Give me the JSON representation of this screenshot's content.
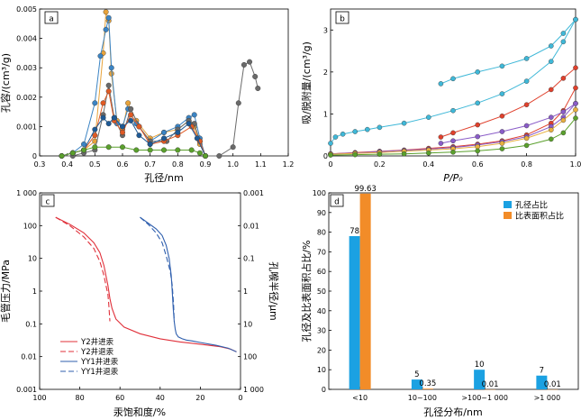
{
  "chart_data": [
    {
      "panel": "a",
      "type": "line",
      "xlabel": "孔径/nm",
      "ylabel": "孔容/(cm³/g)",
      "xlim": [
        0.3,
        1.2
      ],
      "ylim": [
        0,
        0.005
      ],
      "xticks": [
        "0.3",
        "0.4",
        "0.5",
        "0.6",
        "0.7",
        "0.8",
        "0.9",
        "1.0",
        "1.1",
        "1.2"
      ],
      "yticks": [
        "0",
        "0.001",
        "0.002",
        "0.003",
        "0.004",
        "0.005"
      ],
      "series": [
        {
          "color": "#e8a33a",
          "x": [
            0.38,
            0.42,
            0.46,
            0.5,
            0.53,
            0.54,
            0.55,
            0.56,
            0.58,
            0.6,
            0.62,
            0.65,
            0.7,
            0.75,
            0.8,
            0.84,
            0.86,
            0.88,
            0.9
          ],
          "y": [
            0.0,
            0.0001,
            0.0002,
            0.0005,
            0.0035,
            0.0049,
            0.0046,
            0.0028,
            0.0012,
            0.0009,
            0.0018,
            0.0012,
            0.0006,
            0.0008,
            0.0009,
            0.0012,
            0.001,
            0.0004,
            0.0
          ]
        },
        {
          "color": "#3b84c4",
          "x": [
            0.38,
            0.42,
            0.46,
            0.5,
            0.52,
            0.54,
            0.55,
            0.56,
            0.58,
            0.6,
            0.62,
            0.65,
            0.7,
            0.75,
            0.8,
            0.84,
            0.86,
            0.88,
            0.9
          ],
          "y": [
            0.0,
            0.0001,
            0.0004,
            0.0018,
            0.0034,
            0.0043,
            0.0047,
            0.003,
            0.0011,
            0.001,
            0.0016,
            0.0011,
            0.0005,
            0.0008,
            0.001,
            0.0013,
            0.0014,
            0.0006,
            0.0
          ]
        },
        {
          "color": "#6a6a6a",
          "x": [
            0.38,
            0.42,
            0.46,
            0.5,
            0.53,
            0.55,
            0.57,
            0.6,
            0.63,
            0.66,
            0.7,
            0.76,
            0.8,
            0.84,
            0.86,
            0.88,
            0.9,
            0.95,
            1.0,
            1.02,
            1.04,
            1.06,
            1.08,
            1.09
          ],
          "y": [
            0.0,
            0.0,
            0.0001,
            0.0002,
            0.0014,
            0.0024,
            0.0013,
            0.0007,
            0.0016,
            0.001,
            0.0005,
            0.0005,
            0.0009,
            0.0012,
            0.0011,
            0.0005,
            0.0,
            0.0,
            0.0003,
            0.0018,
            0.0031,
            0.0032,
            0.0027,
            0.0023
          ]
        },
        {
          "color": "#e05a24",
          "x": [
            0.38,
            0.42,
            0.46,
            0.5,
            0.53,
            0.55,
            0.57,
            0.6,
            0.63,
            0.66,
            0.7,
            0.75,
            0.8,
            0.85,
            0.88,
            0.9
          ],
          "y": [
            0.0,
            0.0001,
            0.0002,
            0.0007,
            0.0018,
            0.0022,
            0.0012,
            0.0008,
            0.0014,
            0.001,
            0.0004,
            0.0005,
            0.0007,
            0.001,
            0.0005,
            0.0
          ]
        },
        {
          "color": "#1e5a96",
          "x": [
            0.38,
            0.42,
            0.46,
            0.5,
            0.53,
            0.55,
            0.57,
            0.6,
            0.63,
            0.66,
            0.7,
            0.75,
            0.8,
            0.84,
            0.87,
            0.9
          ],
          "y": [
            0.0,
            0.0001,
            0.0002,
            0.0009,
            0.0013,
            0.0011,
            0.0013,
            0.001,
            0.0012,
            0.0007,
            0.0004,
            0.0006,
            0.0008,
            0.0011,
            0.0006,
            0.0
          ]
        },
        {
          "color": "#5aa02c",
          "x": [
            0.38,
            0.42,
            0.46,
            0.5,
            0.55,
            0.6,
            0.65,
            0.7,
            0.75,
            0.8,
            0.85,
            0.88,
            0.9
          ],
          "y": [
            0.0,
            0.0001,
            0.0002,
            0.0003,
            0.0003,
            0.0003,
            0.0002,
            0.0002,
            0.0002,
            0.0002,
            0.0002,
            0.0001,
            0.0
          ]
        }
      ]
    },
    {
      "panel": "b",
      "type": "line",
      "xlabel": "P/P₀",
      "ylabel": "吸/脱附量/(cm³/g)",
      "xlim": [
        0,
        1
      ],
      "ylim": [
        0,
        3.5
      ],
      "xticks": [
        "0",
        "0.2",
        "0.4",
        "0.6",
        "0.8",
        "1.0"
      ],
      "yticks": [
        "0",
        "1",
        "2",
        "3"
      ],
      "series": [
        {
          "color": "#3fb8d8",
          "x": [
            0.0,
            0.02,
            0.05,
            0.1,
            0.15,
            0.2,
            0.3,
            0.4,
            0.5,
            0.6,
            0.7,
            0.8,
            0.9,
            0.95,
            1.0
          ],
          "y": [
            0.3,
            0.45,
            0.52,
            0.58,
            0.63,
            0.68,
            0.78,
            0.92,
            1.08,
            1.26,
            1.48,
            1.78,
            2.25,
            2.72,
            3.25
          ]
        },
        {
          "color": "#3fb8d8",
          "x": [
            1.0,
            0.95,
            0.9,
            0.8,
            0.7,
            0.6,
            0.5,
            0.45
          ],
          "y": [
            3.25,
            2.92,
            2.62,
            2.32,
            2.14,
            2.0,
            1.84,
            1.72
          ]
        },
        {
          "color": "#e0402c",
          "x": [
            0.0,
            0.1,
            0.2,
            0.3,
            0.4,
            0.5,
            0.6,
            0.7,
            0.8,
            0.9,
            0.95,
            1.0
          ],
          "y": [
            0.05,
            0.08,
            0.11,
            0.14,
            0.18,
            0.22,
            0.28,
            0.36,
            0.5,
            0.78,
            1.08,
            1.62
          ]
        },
        {
          "color": "#e0402c",
          "x": [
            1.0,
            0.95,
            0.9,
            0.8,
            0.7,
            0.6,
            0.5,
            0.45
          ],
          "y": [
            2.1,
            1.85,
            1.58,
            1.22,
            0.95,
            0.74,
            0.55,
            0.45
          ]
        },
        {
          "color": "#8a5cc8",
          "x": [
            0.0,
            0.1,
            0.2,
            0.3,
            0.4,
            0.5,
            0.6,
            0.7,
            0.8,
            0.9,
            0.95,
            1.0
          ],
          "y": [
            0.05,
            0.07,
            0.1,
            0.13,
            0.16,
            0.2,
            0.26,
            0.34,
            0.46,
            0.7,
            0.92,
            1.25
          ]
        },
        {
          "color": "#8a5cc8",
          "x": [
            1.0,
            0.95,
            0.9,
            0.8,
            0.7,
            0.6,
            0.5,
            0.45
          ],
          "y": [
            1.25,
            1.05,
            0.92,
            0.72,
            0.58,
            0.46,
            0.36,
            0.3
          ]
        },
        {
          "color": "#e8b040",
          "x": [
            0.0,
            0.1,
            0.2,
            0.3,
            0.4,
            0.5,
            0.6,
            0.7,
            0.8,
            0.9,
            0.95,
            1.0
          ],
          "y": [
            0.04,
            0.06,
            0.08,
            0.11,
            0.14,
            0.17,
            0.22,
            0.3,
            0.42,
            0.62,
            0.85,
            1.1
          ]
        },
        {
          "color": "#5aa02c",
          "x": [
            0.0,
            0.1,
            0.2,
            0.3,
            0.4,
            0.5,
            0.6,
            0.7,
            0.8,
            0.9,
            0.95,
            1.0
          ],
          "y": [
            0.02,
            0.03,
            0.04,
            0.05,
            0.07,
            0.09,
            0.12,
            0.17,
            0.25,
            0.4,
            0.55,
            0.9
          ]
        }
      ]
    },
    {
      "panel": "c",
      "type": "line",
      "xlabel": "汞饱和度/%",
      "ylabel": "毛管压力/MPa",
      "ylabel2": "孔喉半径/μm",
      "xlim": [
        100,
        0
      ],
      "ylim": [
        0.001,
        1000
      ],
      "xticks": [
        "100",
        "80",
        "60",
        "40",
        "20",
        "0"
      ],
      "yticks": [
        "0.001",
        "0.01",
        "0.1",
        "1",
        "10",
        "100",
        "1 000"
      ],
      "yticks2": [
        "1 000",
        "100",
        "10",
        "1",
        "0.1",
        "0.01",
        "0.001"
      ],
      "series": [
        {
          "name": "Y2井进汞",
          "color": "#e0303a",
          "dash": false,
          "x": [
            92,
            85,
            78,
            73,
            70,
            68,
            67,
            66,
            65,
            64,
            62,
            58,
            50,
            40,
            30,
            20,
            10,
            5,
            2
          ],
          "y": [
            180,
            110,
            60,
            30,
            15,
            6,
            3,
            1.5,
            0.6,
            0.3,
            0.14,
            0.08,
            0.05,
            0.035,
            0.028,
            0.024,
            0.02,
            0.017,
            0.014
          ]
        },
        {
          "name": "Y2井退汞",
          "color": "#e0303a",
          "dash": true,
          "x": [
            92,
            85,
            78,
            73,
            70,
            68,
            67,
            66,
            65.5,
            65
          ],
          "y": [
            180,
            100,
            45,
            20,
            8,
            3,
            1.5,
            0.8,
            0.35,
            0.12
          ]
        },
        {
          "name": "YY1井进汞",
          "color": "#2f5fae",
          "dash": false,
          "x": [
            50,
            46,
            42,
            39,
            37,
            35.5,
            34.5,
            34,
            33.5,
            33,
            32.5,
            32,
            31,
            29,
            27,
            24,
            20,
            12,
            6,
            2
          ],
          "y": [
            180,
            120,
            80,
            50,
            25,
            10,
            3,
            1,
            0.3,
            0.12,
            0.07,
            0.05,
            0.04,
            0.035,
            0.032,
            0.03,
            0.027,
            0.022,
            0.018,
            0.014
          ]
        },
        {
          "name": "YY1井退汞",
          "color": "#2f5fae",
          "dash": true,
          "x": [
            50,
            46,
            42,
            39,
            37,
            35,
            34,
            33.3,
            33
          ],
          "y": [
            180,
            110,
            60,
            30,
            12,
            4,
            1.5,
            0.4,
            0.12
          ]
        }
      ]
    },
    {
      "panel": "d",
      "type": "bar",
      "xlabel": "孔径分布/nm",
      "ylabel": "孔径及比表面积占比/%",
      "ylim": [
        0,
        100
      ],
      "yticks": [
        "0",
        "10",
        "20",
        "30",
        "40",
        "50",
        "60",
        "70",
        "80",
        "90",
        "100"
      ],
      "categories": [
        "<10",
        "10~100",
        ">100~1 000",
        ">1 000"
      ],
      "series": [
        {
          "name": "孔径占比",
          "color": "#1ba1e2",
          "values": [
            78,
            5,
            10,
            7
          ],
          "labels": [
            "78",
            "5",
            "10",
            "7"
          ]
        },
        {
          "name": "比表面积占比",
          "color": "#f28c28",
          "values": [
            99.63,
            0.35,
            0.01,
            0.01
          ],
          "labels": [
            "99.63",
            "0.35",
            "0.01",
            "0.01"
          ]
        }
      ]
    }
  ]
}
